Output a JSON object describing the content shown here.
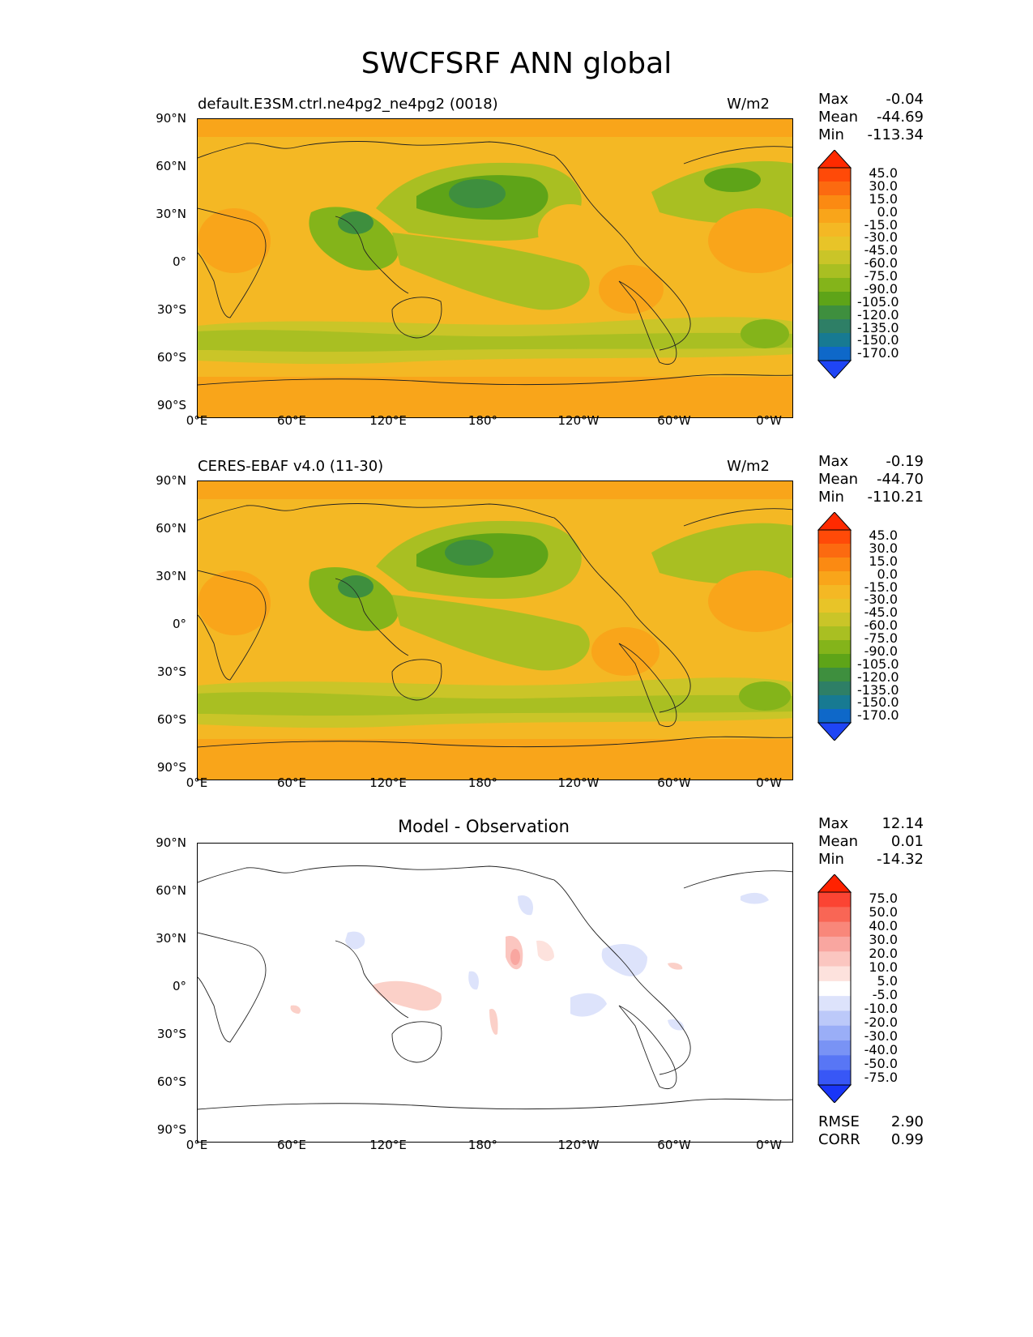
{
  "title": "SWCFSRF ANN global",
  "lat_labels": [
    "90°N",
    "60°N",
    "30°N",
    "0°",
    "30°S",
    "60°S",
    "90°S"
  ],
  "lon_labels": [
    "0°E",
    "60°E",
    "120°E",
    "180°",
    "120°W",
    "60°W",
    "0°W"
  ],
  "panels": [
    {
      "left_title": "default.E3SM.ctrl.ne4pg2_ne4pg2 (0018)",
      "center_title": "",
      "units": "W/m2",
      "stats": {
        "max_label": "Max",
        "max": "-0.04",
        "mean_label": "Mean",
        "mean": "-44.69",
        "min_label": "Min",
        "min": "-113.34"
      },
      "colorbar_labels": [
        "45.0",
        "30.0",
        "15.0",
        "0.0",
        "-15.0",
        "-30.0",
        "-45.0",
        "-60.0",
        "-75.0",
        "-90.0",
        "-105.0",
        "-120.0",
        "-135.0",
        "-150.0",
        "-170.0"
      ],
      "colorbar_colors": [
        "#ff2a00",
        "#ff4a08",
        "#fc6a10",
        "#fb8a12",
        "#f9a51a",
        "#f4b824",
        "#e8c428",
        "#cac528",
        "#a9bf22",
        "#84b41a",
        "#5ea418",
        "#3e8f3e",
        "#2e7f66",
        "#177a92",
        "#0e68c9",
        "#1f45f5"
      ]
    },
    {
      "left_title": "CERES-EBAF v4.0 (11-30)",
      "center_title": "",
      "units": "W/m2",
      "stats": {
        "max_label": "Max",
        "max": "-0.19",
        "mean_label": "Mean",
        "mean": "-44.70",
        "min_label": "Min",
        "min": "-110.21"
      },
      "colorbar_labels": [
        "45.0",
        "30.0",
        "15.0",
        "0.0",
        "-15.0",
        "-30.0",
        "-45.0",
        "-60.0",
        "-75.0",
        "-90.0",
        "-105.0",
        "-120.0",
        "-135.0",
        "-150.0",
        "-170.0"
      ],
      "colorbar_colors": [
        "#ff2a00",
        "#ff4a08",
        "#fc6a10",
        "#fb8a12",
        "#f9a51a",
        "#f4b824",
        "#e8c428",
        "#cac528",
        "#a9bf22",
        "#84b41a",
        "#5ea418",
        "#3e8f3e",
        "#2e7f66",
        "#177a92",
        "#0e68c9",
        "#1f45f5"
      ]
    },
    {
      "left_title": "",
      "center_title": "Model - Observation",
      "units": "",
      "stats": {
        "max_label": "Max",
        "max": "12.14",
        "mean_label": "Mean",
        "mean": "0.01",
        "min_label": "Min",
        "min": "-14.32"
      },
      "extra_stats": {
        "rmse_label": "RMSE",
        "rmse": "2.90",
        "corr_label": "CORR",
        "corr": "0.99"
      },
      "colorbar_labels": [
        "75.0",
        "50.0",
        "40.0",
        "30.0",
        "20.0",
        "10.0",
        "5.0",
        "-5.0",
        "-10.0",
        "-20.0",
        "-30.0",
        "-40.0",
        "-50.0",
        "-75.0"
      ],
      "colorbar_colors": [
        "#ff2200",
        "#fb4433",
        "#f96655",
        "#f9877a",
        "#f9a6a0",
        "#fbc6c0",
        "#fde2dd",
        "#ffffff",
        "#dde3fb",
        "#bcc9f9",
        "#9aaef7",
        "#7993f5",
        "#5876f5",
        "#3857f6",
        "#1935f8"
      ]
    }
  ]
}
